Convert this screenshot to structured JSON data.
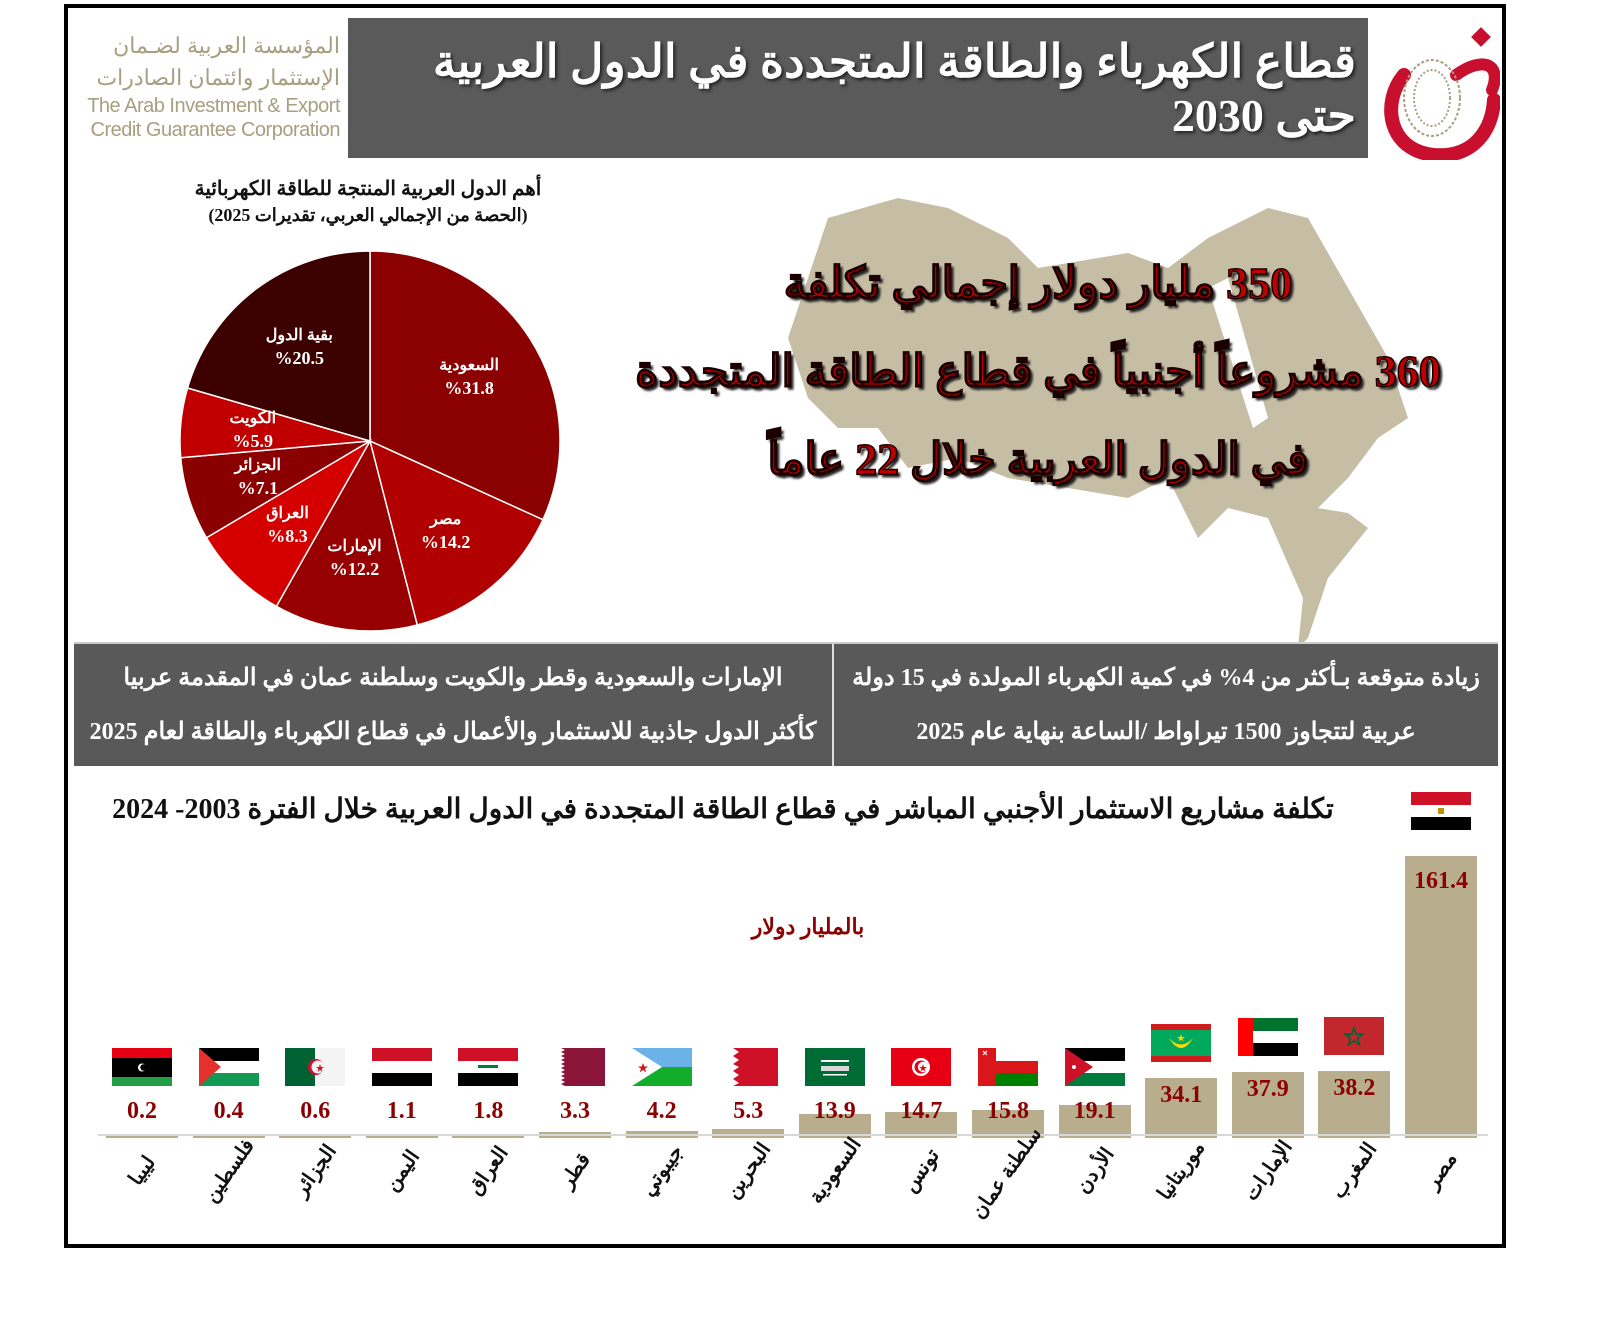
{
  "header": {
    "org_ar_line1": "المؤسسة العربية لضـمان",
    "org_ar_line2": "الإستثمار وائتمان الصادرات",
    "org_en_line1": "The Arab Investment & Export",
    "org_en_line2": "Credit Guarantee Corporation",
    "title": "قطاع الكهرباء والطاقة المتجددة في الدول العربية حتى 2030",
    "logo_icon": "dhaman-logo-icon"
  },
  "colors": {
    "title_bar": "#5a5a5a",
    "brand_red": "#c8102e",
    "gold": "#a89e80",
    "bar": "#b8ad8c",
    "value_text": "#8b0000",
    "map": "#c6bea4"
  },
  "headline": {
    "line1": "350 مليار دولار إجمالي تكلفة",
    "line2": "360 مشروعاً أجنبياً في قطاع الطاقة المتجددة",
    "line3": "في الدول العربية خلال 22 عاماً"
  },
  "info": {
    "left_line1": "الإمارات والسعودية وقطر والكويت وسلطنة عمان في المقدمة عربيا",
    "left_line2": "كأكثر الدول جاذبية للاستثمار والأعمال في قطاع الكهرباء والطاقة لعام 2025",
    "right_line1": "زيادة متوقعة بـأكثر من 4% في كمية الكهرباء المولدة في 15 دولة",
    "right_line2": "عربية لتتجاوز 1500 تيراواط /الساعة بنهاية عام 2025"
  },
  "chart_data": [
    {
      "type": "pie",
      "title": "أهم الدول العربية المنتجة للطاقة الكهربائية",
      "subtitle": "(الحصة من الإجمالي العربي، تقديرات 2025)",
      "labels": [
        "السعودية",
        "مصر",
        "الإمارات",
        "العراق",
        "الجزائر",
        "الكويت",
        "بقية الدول"
      ],
      "values": [
        31.8,
        14.2,
        12.2,
        8.3,
        7.1,
        5.9,
        20.5
      ],
      "display": [
        "%31.8",
        "%14.2",
        "%12.2",
        "%8.3",
        "%7.1",
        "%5.9",
        "%20.5"
      ],
      "colors": [
        "#8b0000",
        "#b00000",
        "#960000",
        "#d40000",
        "#8a0000",
        "#c00000",
        "#3d0000"
      ]
    },
    {
      "type": "bar",
      "title": "تكلفة مشاريع الاستثمار الأجنبي المباشر في قطاع الطاقة المتجددة في الدول العربية خلال الفترة 2003- 2024",
      "ylabel": "بالمليار دولار",
      "categories": [
        "ليبيا",
        "فلسطين",
        "الجزائر",
        "اليمن",
        "العراق",
        "قطر",
        "جيبوتي",
        "البحرين",
        "السعودية",
        "تونس",
        "سلطنة عمان",
        "الأردن",
        "موريتانيا",
        "الإمارات",
        "المغرب",
        "مصر"
      ],
      "values": [
        0.2,
        0.4,
        0.6,
        1.1,
        1.8,
        3.3,
        4.2,
        5.3,
        13.9,
        14.7,
        15.8,
        19.1,
        34.1,
        37.9,
        38.2,
        161.4
      ],
      "flags": [
        "libya-flag-icon",
        "palestine-flag-icon",
        "algeria-flag-icon",
        "yemen-flag-icon",
        "iraq-flag-icon",
        "qatar-flag-icon",
        "djibouti-flag-icon",
        "bahrain-flag-icon",
        "saudi-flag-icon",
        "tunisia-flag-icon",
        "oman-flag-icon",
        "jordan-flag-icon",
        "mauritania-flag-icon",
        "uae-flag-icon",
        "morocco-flag-icon",
        "egypt-flag-icon"
      ],
      "grid": false,
      "legend": "none"
    }
  ]
}
